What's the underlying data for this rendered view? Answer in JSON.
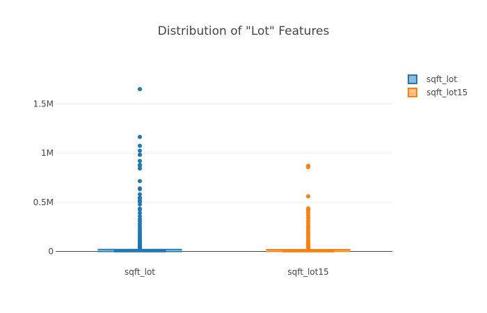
{
  "chart_data": {
    "type": "box",
    "title": "Distribution of \"Lot\" Features",
    "xlabel": "",
    "ylabel": "",
    "ylim": [
      -60000,
      1850000
    ],
    "yticks": [
      {
        "value": 0,
        "label": "0"
      },
      {
        "value": 500000,
        "label": "0.5M"
      },
      {
        "value": 1000000,
        "label": "1M"
      },
      {
        "value": 1500000,
        "label": "1.5M"
      }
    ],
    "grid": true,
    "legend_position": "top-right",
    "categories": [
      "sqft_lot",
      "sqft_lot15"
    ],
    "series": [
      {
        "name": "sqft_lot",
        "color": "#1f77b4",
        "fill": "#8fbbd9",
        "box": {
          "q1": 5040,
          "median": 7618,
          "q3": 10688,
          "lower_fence": 520,
          "upper_fence": 19160
        },
        "outliers": [
          1651359,
          1164794,
          1074218,
          1024068,
          982998,
          982278,
          920423,
          881654,
          871200,
          843309,
          715690,
          641203,
          632914,
          581500,
          547549,
          542322,
          522720,
          505166,
          478288,
          435600,
          425581,
          392040,
          359341,
          329903,
          306848,
          280962,
          260172,
          237772,
          219542,
          200812,
          183387,
          164135,
          150282,
          135036,
          120661,
          108900,
          97574,
          87120,
          78843,
          70325,
          62726,
          55233,
          48787,
          42253,
          36283,
          31143,
          26586,
          22564
        ]
      },
      {
        "name": "sqft_lot15",
        "color": "#ff7f0e",
        "fill": "#ffbf86",
        "box": {
          "q1": 5100,
          "median": 7620,
          "q3": 10083,
          "lower_fence": 651,
          "upper_fence": 17550
        },
        "outliers": [
          871200,
          858132,
          560617,
          438213,
          434728,
          425581,
          411962,
          392040,
          364258,
          338817,
          311610,
          287499,
          261360,
          239580,
          217800,
          196020,
          174240,
          152460,
          130680,
          108900,
          95000,
          83635,
          72309,
          62726,
          53578,
          46174,
          39268,
          33536,
          28000,
          24000,
          20700
        ]
      }
    ]
  }
}
